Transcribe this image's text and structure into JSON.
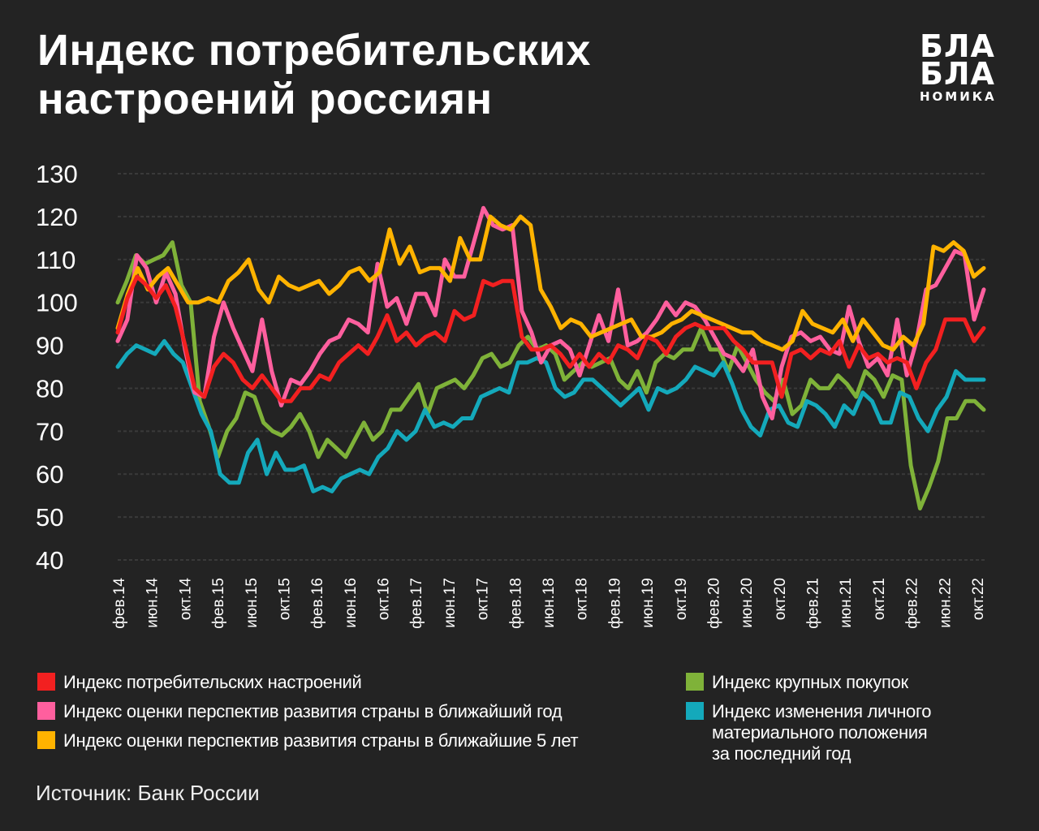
{
  "header": {
    "title_line1": "Индекс потребительских",
    "title_line2": "настроений россиян",
    "logo_line1": "БЛА",
    "logo_line2": "БЛА",
    "logo_line3": "НОМИКА"
  },
  "source": "Источник: Банк России",
  "colors": {
    "background": "#232323",
    "red": "#f22020",
    "pink": "#ff5f9e",
    "yellow": "#ffb300",
    "green": "#7fb239",
    "teal": "#14a9bb",
    "grid": "#3a3a3a"
  },
  "chart_data": {
    "type": "line",
    "title": "Индекс потребительских настроений россиян",
    "ylim": [
      40,
      130
    ],
    "yticks": [
      130,
      120,
      110,
      100,
      90,
      80,
      70,
      60,
      50,
      40
    ],
    "grid": "horizontal",
    "legend_position": "bottom",
    "x_labels": [
      "фев.14",
      "июн.14",
      "окт.14",
      "фев.15",
      "июн.15",
      "окт.15",
      "фев.16",
      "июн.16",
      "окт.16",
      "фев.17",
      "июн.17",
      "окт.17",
      "фев.18",
      "июн.18",
      "окт.18",
      "фев.19",
      "июн.19",
      "окт.19",
      "фев.20",
      "июн.20",
      "окт.20",
      "фев.21",
      "июн.21",
      "окт.21",
      "фев.22",
      "июн.22",
      "окт.22"
    ],
    "series": [
      {
        "name": "Индекс потребительских настроений",
        "color": "#f22020",
        "values": [
          93,
          101,
          106,
          104,
          101,
          104,
          99,
          90,
          80,
          78,
          85,
          88,
          86,
          82,
          80,
          83,
          80,
          77,
          77,
          80,
          80,
          83,
          82,
          86,
          88,
          90,
          88,
          92,
          97,
          91,
          93,
          90,
          92,
          93,
          91,
          98,
          96,
          97,
          105,
          104,
          105,
          105,
          92,
          89,
          89,
          90,
          88,
          85,
          88,
          85,
          88,
          86,
          90,
          89,
          87,
          92,
          91,
          88,
          92,
          94,
          95,
          94,
          94,
          94,
          91,
          89,
          86,
          86,
          86,
          78,
          88,
          89,
          87,
          89,
          88,
          91,
          85,
          90,
          87,
          88,
          86,
          87,
          86,
          80,
          86,
          89,
          96,
          96,
          96,
          91,
          94
        ]
      },
      {
        "name": "Индекс оценки перспектив развития страны в ближайший год",
        "color": "#ff5f9e",
        "values": [
          91,
          96,
          111,
          108,
          100,
          107,
          102,
          89,
          79,
          78,
          92,
          100,
          94,
          89,
          84,
          96,
          84,
          76,
          82,
          81,
          84,
          88,
          91,
          92,
          96,
          95,
          93,
          109,
          99,
          101,
          95,
          102,
          102,
          97,
          110,
          106,
          106,
          114,
          122,
          118,
          117,
          118,
          98,
          93,
          86,
          90,
          91,
          89,
          83,
          90,
          97,
          91,
          103,
          90,
          91,
          93,
          96,
          100,
          97,
          100,
          99,
          96,
          92,
          88,
          87,
          84,
          89,
          78,
          73,
          85,
          92,
          93,
          91,
          92,
          89,
          88,
          99,
          91,
          85,
          87,
          83,
          96,
          83,
          91,
          103,
          104,
          108,
          112,
          111,
          96,
          103
        ]
      },
      {
        "name": "Индекс оценки перспектив развития страны в ближайшие 5 лет",
        "color": "#ffb300",
        "values": [
          94,
          102,
          108,
          103,
          106,
          108,
          104,
          100,
          100,
          101,
          100,
          105,
          107,
          110,
          103,
          100,
          106,
          104,
          103,
          104,
          105,
          102,
          104,
          107,
          108,
          105,
          107,
          117,
          109,
          113,
          107,
          108,
          108,
          105,
          115,
          110,
          110,
          120,
          118,
          117,
          120,
          118,
          103,
          99,
          94,
          96,
          95,
          92,
          93,
          94,
          95,
          96,
          92,
          92,
          93,
          95,
          96,
          98,
          97,
          96,
          95,
          94,
          93,
          93,
          91,
          90,
          89,
          91,
          98,
          95,
          94,
          93,
          96,
          91,
          96,
          93,
          90,
          89,
          92,
          90,
          95,
          113,
          112,
          114,
          112,
          106,
          108
        ]
      },
      {
        "name": "Индекс крупных покупок",
        "color": "#7fb239",
        "values": [
          100,
          105,
          111,
          109,
          110,
          111,
          114,
          104,
          100,
          77,
          71,
          64,
          70,
          73,
          79,
          78,
          72,
          70,
          69,
          71,
          74,
          70,
          64,
          68,
          66,
          64,
          68,
          72,
          68,
          70,
          75,
          75,
          78,
          81,
          74,
          80,
          81,
          82,
          80,
          83,
          87,
          88,
          85,
          86,
          90,
          92,
          89,
          90,
          88,
          82,
          84,
          86,
          85,
          86,
          87,
          82,
          80,
          84,
          79,
          86,
          88,
          87,
          89,
          89,
          94,
          89,
          89,
          84,
          90,
          86,
          82,
          79,
          77,
          82,
          74,
          76,
          82,
          80,
          80,
          83,
          81,
          78,
          84,
          82,
          78,
          83,
          82,
          62,
          52,
          57,
          63,
          73,
          73,
          77,
          77,
          75
        ]
      },
      {
        "name": "Индекс изменения личного материального положения за последний год",
        "color": "#14a9bb",
        "values": [
          85,
          88,
          90,
          89,
          88,
          91,
          88,
          86,
          80,
          74,
          70,
          60,
          58,
          58,
          65,
          68,
          60,
          65,
          61,
          61,
          62,
          56,
          57,
          56,
          59,
          60,
          61,
          60,
          64,
          66,
          70,
          68,
          70,
          75,
          71,
          72,
          71,
          73,
          73,
          78,
          79,
          80,
          79,
          86,
          86,
          87,
          86,
          80,
          78,
          79,
          82,
          82,
          80,
          78,
          76,
          78,
          80,
          75,
          80,
          79,
          80,
          82,
          85,
          84,
          83,
          86,
          81,
          75,
          71,
          69,
          75,
          76,
          72,
          71,
          77,
          76,
          74,
          71,
          76,
          74,
          79,
          77,
          72,
          72,
          79,
          78,
          73,
          70,
          75,
          78,
          84,
          82,
          82,
          82
        ]
      }
    ]
  },
  "legend": {
    "red": "Индекс потребительских настроений",
    "pink": "Индекс оценки перспектив развития страны в ближайший год",
    "yellow": "Индекс оценки перспектив развития страны в ближайшие 5 лет",
    "green": "Индекс крупных покупок",
    "teal_line1": "Индекс изменения личного",
    "teal_line2": "материального положения",
    "teal_line3": "за последний год"
  }
}
